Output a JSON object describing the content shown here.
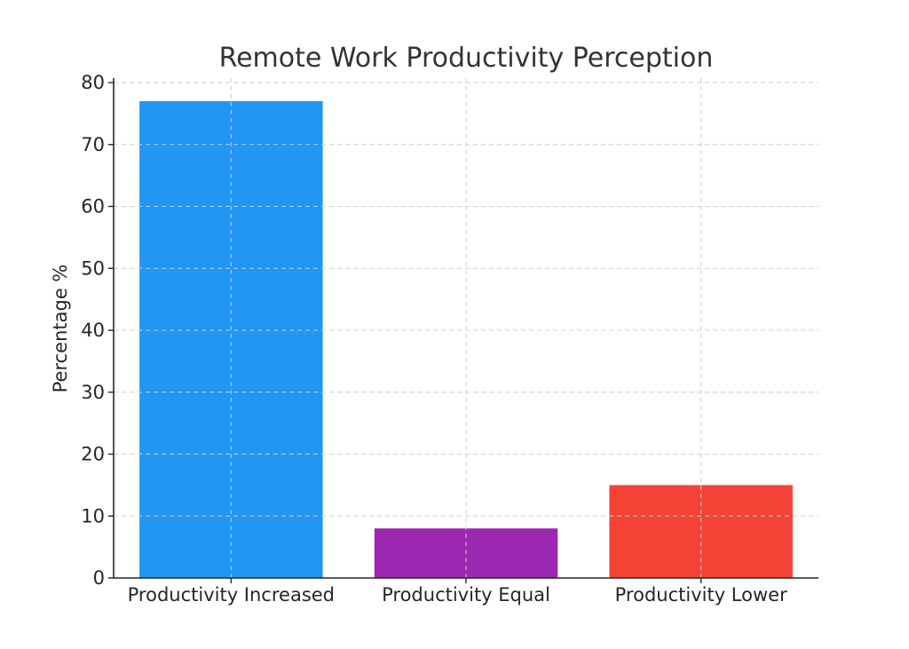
{
  "chart_data": {
    "type": "bar",
    "title": "Remote Work Productivity Perception",
    "xlabel": "",
    "ylabel": "Percentage %",
    "categories": [
      "Productivity Increased",
      "Productivity Equal",
      "Productivity Lower"
    ],
    "values": [
      77,
      8,
      15
    ],
    "colors": [
      "#2196f3",
      "#9c27b0",
      "#f44336"
    ],
    "ylim": [
      0,
      80
    ],
    "yticks": [
      0,
      10,
      20,
      30,
      40,
      50,
      60,
      70,
      80
    ],
    "grid": true,
    "legend": "none"
  }
}
